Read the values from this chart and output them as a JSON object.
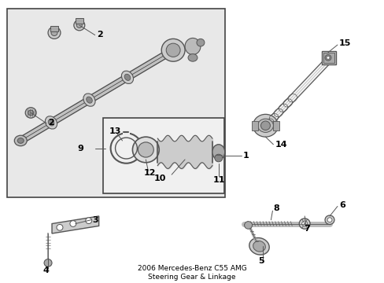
{
  "title": "2006 Mercedes-Benz C55 AMG\nSteering Gear & Linkage",
  "bg_color": "#ffffff",
  "box_fill": "#e8e8e8",
  "inner_fill": "#f2f2f2",
  "part_fill": "#d0d0d0",
  "part_edge": "#555555",
  "line_color": "#444444",
  "label_color": "#000000",
  "fig_width": 4.89,
  "fig_height": 3.6,
  "dpi": 100
}
